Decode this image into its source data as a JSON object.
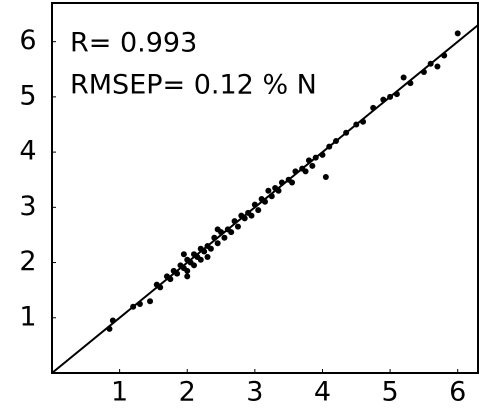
{
  "chart_data": {
    "type": "scatter",
    "annotations": [
      "R= 0.993",
      "RMSEP= 0.12 % N"
    ],
    "x": [
      0.85,
      0.9,
      1.2,
      1.3,
      1.45,
      1.55,
      1.6,
      1.7,
      1.75,
      1.8,
      1.85,
      1.9,
      1.95,
      2.0,
      2.0,
      2.05,
      2.1,
      2.1,
      2.15,
      2.2,
      2.2,
      2.25,
      2.3,
      2.35,
      2.4,
      2.45,
      2.5,
      2.55,
      2.6,
      2.65,
      2.7,
      2.75,
      2.8,
      2.85,
      2.9,
      2.95,
      3.0,
      3.05,
      3.1,
      3.15,
      3.2,
      3.25,
      3.3,
      3.35,
      3.4,
      3.5,
      3.55,
      3.6,
      3.7,
      3.75,
      3.8,
      3.85,
      3.9,
      4.0,
      4.1,
      4.05,
      4.2,
      4.35,
      4.5,
      4.6,
      4.75,
      4.9,
      5.0,
      5.1,
      5.2,
      5.3,
      5.5,
      5.6,
      5.7,
      5.8,
      6.0,
      2.0,
      2.3,
      1.95,
      2.45
    ],
    "values": [
      0.8,
      0.95,
      1.2,
      1.25,
      1.3,
      1.6,
      1.55,
      1.75,
      1.7,
      1.85,
      1.8,
      1.95,
      1.9,
      2.05,
      1.85,
      2.0,
      2.15,
      1.95,
      2.1,
      2.25,
      2.05,
      2.2,
      2.3,
      2.25,
      2.45,
      2.35,
      2.55,
      2.45,
      2.6,
      2.55,
      2.75,
      2.65,
      2.85,
      2.8,
      2.9,
      2.85,
      3.05,
      2.95,
      3.15,
      3.1,
      3.3,
      3.2,
      3.35,
      3.3,
      3.45,
      3.5,
      3.45,
      3.65,
      3.7,
      3.65,
      3.85,
      3.75,
      3.9,
      3.95,
      4.1,
      3.55,
      4.2,
      4.35,
      4.5,
      4.55,
      4.8,
      4.95,
      5.0,
      5.05,
      5.35,
      5.25,
      5.45,
      5.6,
      5.55,
      5.75,
      6.15,
      1.75,
      2.1,
      2.15,
      2.6
    ],
    "color": "#000000",
    "xlim": [
      0,
      6.3
    ],
    "ylim": [
      0,
      6.7
    ],
    "xticks": [
      1,
      2,
      3,
      4,
      5,
      6
    ],
    "yticks": [
      1,
      2,
      3,
      4,
      5,
      6
    ],
    "reference_line": true
  }
}
